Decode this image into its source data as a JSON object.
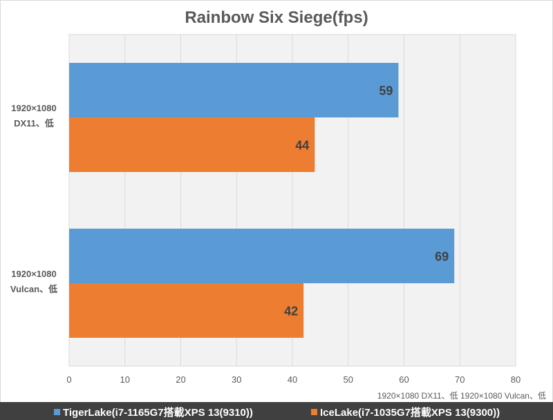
{
  "chart_data": {
    "type": "bar",
    "orientation": "horizontal",
    "title": "Rainbow Six Siege(fps)",
    "categories": [
      "1920×1080 DX11、低",
      "1920×1080 Vulcan、低"
    ],
    "category_lines": [
      [
        "1920×1080",
        "DX11、低"
      ],
      [
        "1920×1080",
        "Vulcan、低"
      ]
    ],
    "series": [
      {
        "name": "TigerLake(i7-1165G7搭載XPS 13(9310))",
        "color": "#5b9bd5",
        "values": [
          59,
          69
        ]
      },
      {
        "name": "IceLake(i7-1035G7搭載XPS 13(9300))",
        "color": "#ed7d31",
        "values": [
          44,
          42
        ]
      }
    ],
    "xlim": [
      0,
      80
    ],
    "xticks": [
      0,
      10,
      20,
      30,
      40,
      50,
      60,
      70,
      80
    ],
    "xlabel": "1920×1080 DX11、低 1920×1080 Vulcan、低",
    "grid": true,
    "legend": "bottom"
  }
}
